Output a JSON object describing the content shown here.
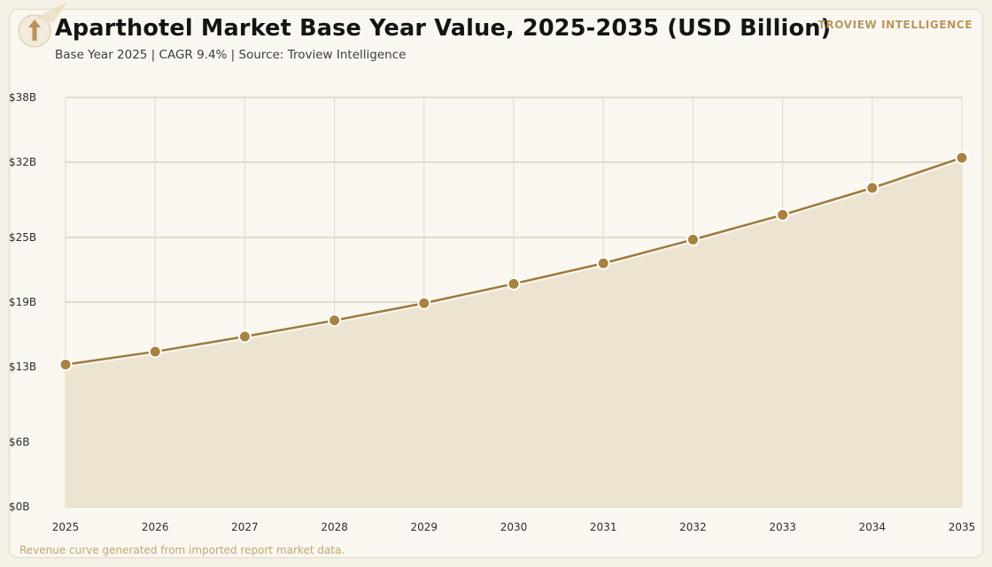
{
  "header": {
    "title": "Aparthotel Market Base Year Value, 2025-2035 (USD Billion)",
    "subtitle": "Base Year 2025 | CAGR 9.4% | Source: Troview Intelligence",
    "brand": "TROVIEW INTELLIGENCE"
  },
  "footer": {
    "note": "Revenue curve generated from imported report market data."
  },
  "colors": {
    "line": "#9c7a3c",
    "marker": "#a8823f",
    "area": "#ede3d1",
    "grid_h": "#cbc0ab",
    "grid_v": "#e0d8c8",
    "logo": "#b8935a"
  },
  "logo_icon": "up-arrow-icon",
  "chart_data": {
    "type": "area",
    "x": [
      2025,
      2026,
      2027,
      2028,
      2029,
      2030,
      2031,
      2032,
      2033,
      2034,
      2035
    ],
    "values": [
      13.2,
      14.4,
      15.8,
      17.3,
      18.9,
      20.7,
      22.6,
      24.8,
      27.1,
      29.6,
      32.4
    ],
    "ylim": [
      0,
      38
    ],
    "yticks": [
      0,
      6,
      13,
      19,
      25,
      32,
      38
    ],
    "ytick_labels": [
      "$0B",
      "$6B",
      "$13B",
      "$19B",
      "$25B",
      "$32B",
      "$38B"
    ],
    "xtick_labels": [
      "2025",
      "2026",
      "2027",
      "2028",
      "2029",
      "2030",
      "2031",
      "2032",
      "2033",
      "2034",
      "2035"
    ],
    "grid": true,
    "legend": "none"
  }
}
